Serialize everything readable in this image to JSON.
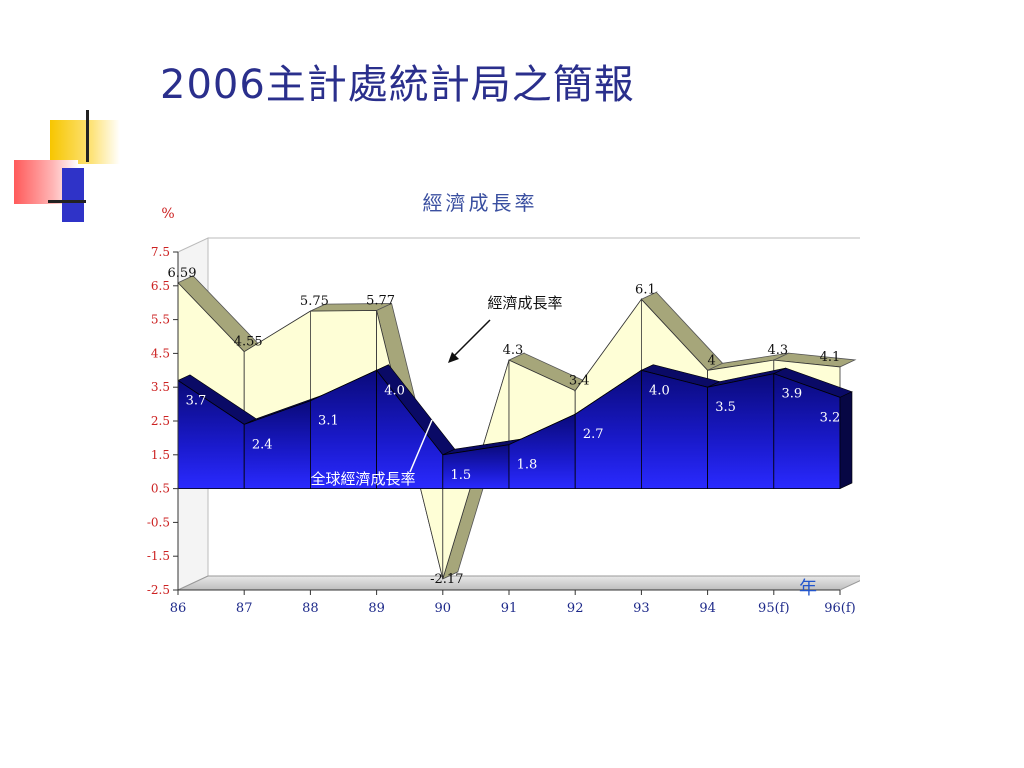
{
  "slide": {
    "title": "2006主計處統計局之簡報"
  },
  "chart_data": {
    "type": "area",
    "title": "經濟成長率",
    "ylabel": "%",
    "xlabel": "年",
    "categories": [
      "86",
      "87",
      "88",
      "89",
      "90",
      "91",
      "92",
      "93",
      "94",
      "95(f)",
      "96(f)"
    ],
    "yticks": [
      "7.5",
      "6.5",
      "5.5",
      "4.5",
      "3.5",
      "2.5",
      "1.5",
      "0.5",
      "-0.5",
      "-1.5",
      "-2.5"
    ],
    "ylim": [
      -2.5,
      7.5
    ],
    "series": [
      {
        "name": "經濟成長率",
        "values": [
          6.59,
          4.55,
          5.75,
          5.77,
          -2.17,
          4.3,
          3.4,
          6.1,
          4,
          4.3,
          4.1
        ],
        "labels": [
          "6.59",
          "4.55",
          "5.75",
          "5.77",
          "-2.17",
          "4.3",
          "3.4",
          "6.1",
          "4",
          "4.3",
          "4.1"
        ],
        "color": "#fefed6"
      },
      {
        "name": "全球經濟成長率",
        "values": [
          3.7,
          2.4,
          3.1,
          4.0,
          1.5,
          1.8,
          2.7,
          4.0,
          3.5,
          3.9,
          3.2
        ],
        "labels": [
          "3.7",
          "2.4",
          "3.1",
          "4.0",
          "1.5",
          "1.8",
          "2.7",
          "4.0",
          "3.5",
          "3.9",
          "3.2"
        ],
        "color": "#1a1acc"
      }
    ],
    "annotations": [
      "經濟成長率",
      "全球經濟成長率"
    ],
    "grid": false
  }
}
